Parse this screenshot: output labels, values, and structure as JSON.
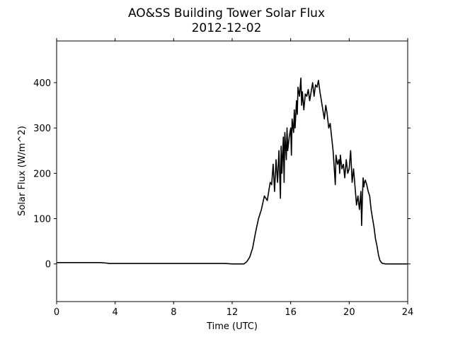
{
  "chart_data": {
    "type": "line",
    "title": "AO&SS Building Tower Solar Flux",
    "subtitle": "2012-12-02",
    "xlabel": "Time (UTC)",
    "ylabel": "Solar Flux (W/m^2)",
    "xlim": [
      0,
      24
    ],
    "ylim": [
      -83,
      492
    ],
    "x_ticks": [
      0,
      4,
      8,
      12,
      16,
      20,
      24
    ],
    "y_ticks": [
      0,
      100,
      200,
      300,
      400
    ],
    "grid": false,
    "legend": "none",
    "line_color": "#000000",
    "series": [
      {
        "x": [
          0,
          0.5,
          1,
          1.5,
          2,
          2.5,
          3,
          3.4,
          3.6,
          4,
          5,
          6,
          7,
          8,
          9,
          10,
          11,
          11.5,
          12,
          12.5,
          12.8,
          13.0,
          13.2,
          13.4,
          13.6,
          13.8,
          14.0,
          14.2,
          14.4,
          14.6,
          14.7,
          14.8,
          14.9,
          15.0,
          15.1,
          15.2,
          15.3,
          15.35,
          15.4,
          15.5,
          15.55,
          15.6,
          15.7,
          15.75,
          15.8,
          15.9,
          16.0,
          16.05,
          16.1,
          16.2,
          16.25,
          16.3,
          16.4,
          16.45,
          16.5,
          16.6,
          16.7,
          16.75,
          16.8,
          16.9,
          17.0,
          17.1,
          17.2,
          17.3,
          17.4,
          17.5,
          17.6,
          17.7,
          17.8,
          17.9,
          18.0,
          18.1,
          18.2,
          18.3,
          18.4,
          18.5,
          18.6,
          18.7,
          18.8,
          18.9,
          19.0,
          19.05,
          19.1,
          19.2,
          19.3,
          19.35,
          19.4,
          19.5,
          19.6,
          19.7,
          19.8,
          19.9,
          20.0,
          20.1,
          20.2,
          20.3,
          20.4,
          20.5,
          20.6,
          20.7,
          20.8,
          20.85,
          20.9,
          20.95,
          21.0,
          21.05,
          21.1,
          21.2,
          21.3,
          21.4,
          21.5,
          21.6,
          21.7,
          21.8,
          21.9,
          22.0,
          22.1,
          22.2,
          22.3,
          22.5,
          22.7,
          23.0,
          24.0
        ],
        "y": [
          3,
          3,
          3,
          3,
          3,
          3,
          3,
          2,
          1,
          1,
          1,
          1,
          1,
          1,
          1,
          1,
          1,
          1,
          0,
          0,
          0,
          5,
          15,
          35,
          70,
          100,
          120,
          150,
          140,
          180,
          175,
          220,
          160,
          230,
          180,
          250,
          145,
          260,
          200,
          280,
          180,
          290,
          230,
          300,
          250,
          280,
          300,
          240,
          320,
          290,
          340,
          300,
          360,
          330,
          390,
          370,
          410,
          350,
          380,
          340,
          375,
          370,
          385,
          360,
          380,
          400,
          370,
          395,
          390,
          405,
          380,
          360,
          340,
          320,
          350,
          330,
          300,
          310,
          280,
          250,
          200,
          175,
          240,
          220,
          230,
          200,
          240,
          210,
          220,
          190,
          230,
          200,
          210,
          250,
          180,
          210,
          170,
          130,
          150,
          120,
          160,
          85,
          140,
          190,
          170,
          180,
          185,
          175,
          160,
          150,
          120,
          100,
          80,
          55,
          40,
          20,
          8,
          3,
          1,
          0,
          0,
          0,
          0
        ],
        "color": "#000000"
      }
    ]
  }
}
